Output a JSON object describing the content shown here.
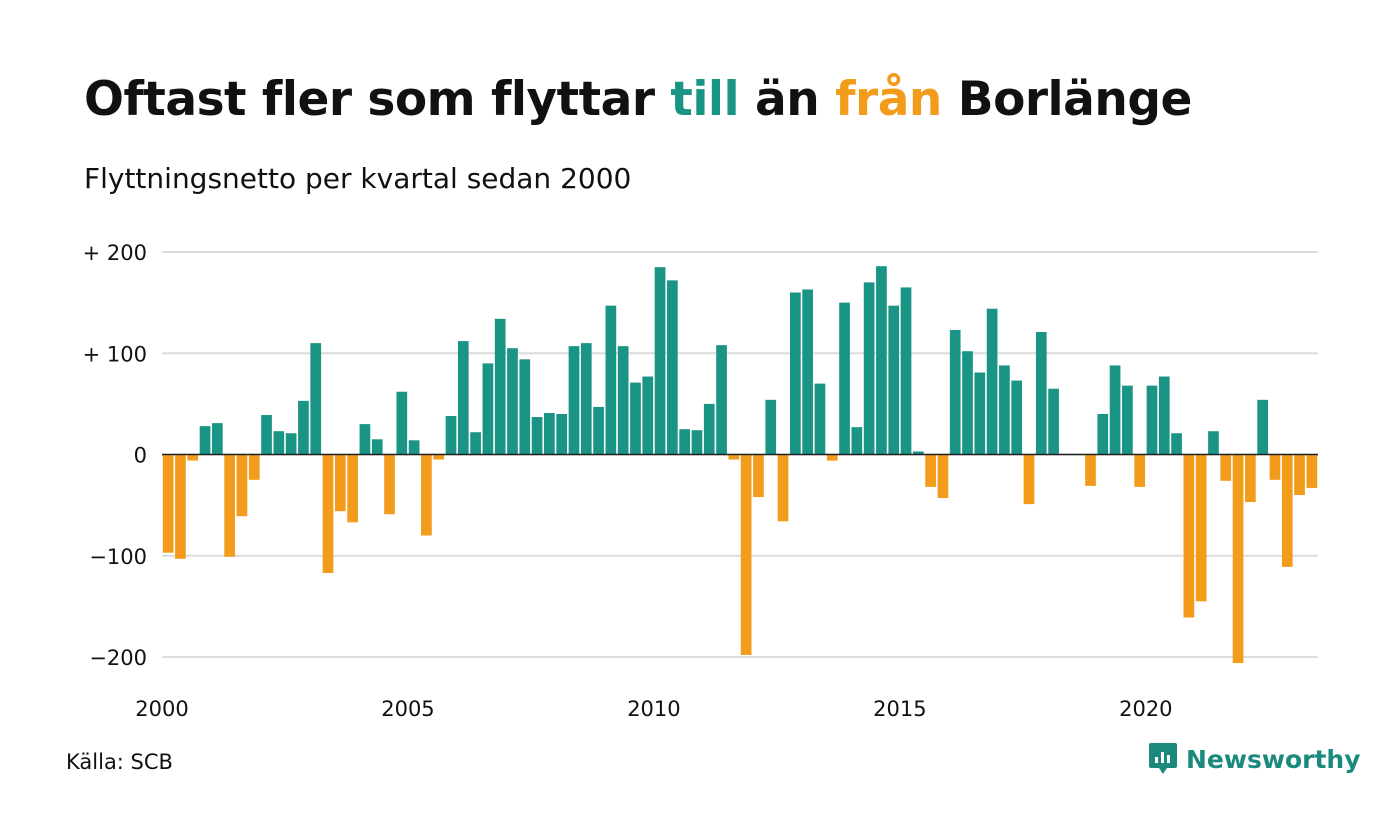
{
  "title": {
    "part1": "Oftast fler som flyttar ",
    "teal_word": "till",
    "part2": " än ",
    "orange_word": "från",
    "part3": " Borlänge"
  },
  "subtitle": "Flyttningsnetto per kvartal sedan 2000",
  "source": "Källa: SCB",
  "brand": {
    "name": "Newsworthy",
    "icon": "newsworthy-logo-icon"
  },
  "colors": {
    "positive": "#1a9484",
    "negative": "#f39c1b",
    "grid": "#dcdcdc",
    "text": "#111111"
  },
  "chart_data": {
    "type": "bar",
    "x_start_year": 2000,
    "quarters_per_year": 4,
    "ylim": [
      -200,
      200
    ],
    "y_ticks": [
      {
        "value": 200,
        "label": "+ 200"
      },
      {
        "value": 100,
        "label": "+ 100"
      },
      {
        "value": 0,
        "label": "0"
      },
      {
        "value": -100,
        "label": "−100"
      },
      {
        "value": -200,
        "label": "−200"
      }
    ],
    "x_ticks": [
      {
        "value": 2000,
        "label": "2000"
      },
      {
        "value": 2005,
        "label": "2005"
      },
      {
        "value": 2010,
        "label": "2010"
      },
      {
        "value": 2015,
        "label": "2015"
      },
      {
        "value": 2020,
        "label": "2020"
      }
    ],
    "grid": true,
    "values": [
      -97,
      -103,
      -6,
      28,
      31,
      -101,
      -61,
      -25,
      39,
      23,
      21,
      53,
      110,
      -117,
      -56,
      -67,
      30,
      15,
      -59,
      62,
      14,
      -80,
      -5,
      38,
      112,
      22,
      90,
      134,
      105,
      94,
      37,
      41,
      40,
      107,
      110,
      47,
      147,
      107,
      71,
      77,
      185,
      172,
      25,
      24,
      50,
      108,
      -5,
      -198,
      -42,
      54,
      -66,
      160,
      163,
      70,
      -6,
      150,
      27,
      170,
      186,
      147,
      165,
      3,
      -32,
      -43,
      123,
      102,
      81,
      144,
      88,
      73,
      -49,
      121,
      65,
      0,
      0,
      -31,
      40,
      88,
      68,
      -32,
      68,
      77,
      21,
      -161,
      -145,
      23,
      -26,
      -206,
      -47,
      54,
      -25,
      -111,
      -40,
      -33
    ]
  }
}
